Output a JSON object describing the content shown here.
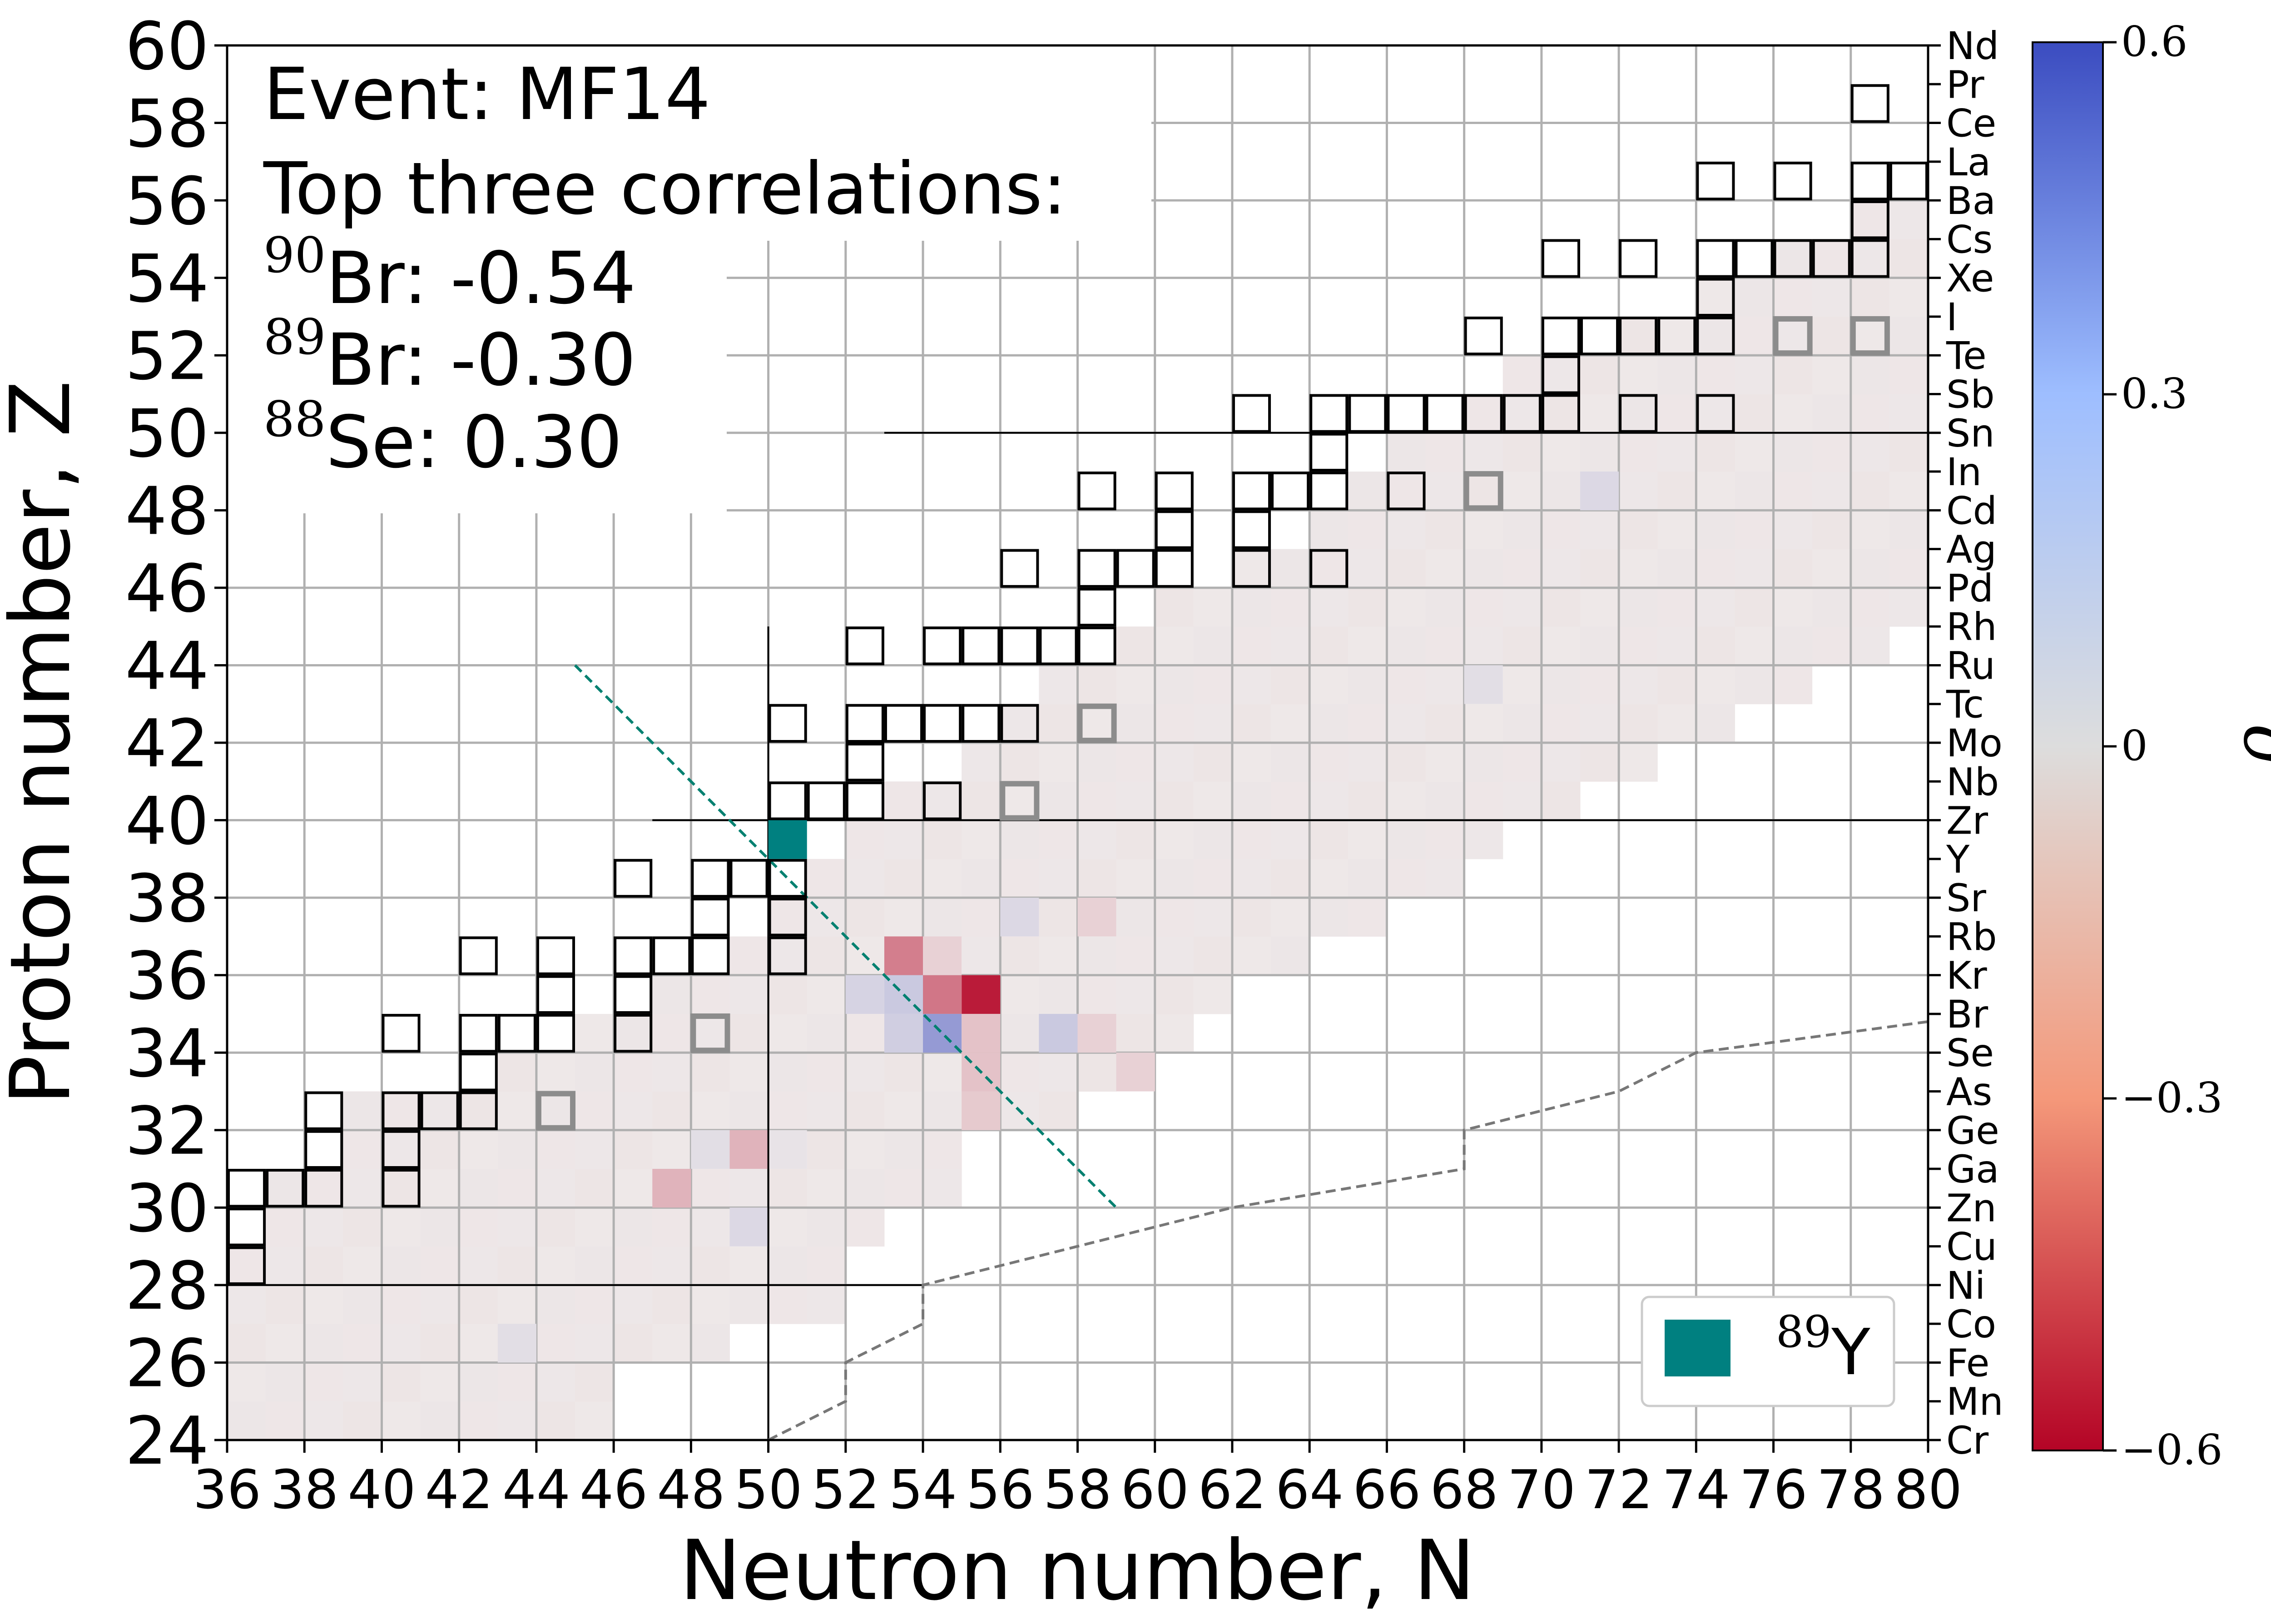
{
  "chart_data": {
    "type": "heatmap",
    "xlabel": "Neutron number, N",
    "ylabel": "Proton number, Z",
    "xlim": [
      36,
      80
    ],
    "ylim": [
      24,
      60
    ],
    "x_ticks": [
      "36",
      "38",
      "40",
      "42",
      "44",
      "46",
      "48",
      "50",
      "52",
      "54",
      "56",
      "58",
      "60",
      "62",
      "64",
      "66",
      "68",
      "70",
      "72",
      "74",
      "76",
      "78",
      "80"
    ],
    "y_ticks": [
      "24",
      "26",
      "28",
      "30",
      "32",
      "34",
      "36",
      "38",
      "40",
      "42",
      "44",
      "46",
      "48",
      "50",
      "52",
      "54",
      "56",
      "58",
      "60"
    ],
    "grid": true,
    "element_symbols": [
      {
        "z": 24,
        "symbol": "Cr"
      },
      {
        "z": 25,
        "symbol": "Mn"
      },
      {
        "z": 26,
        "symbol": "Fe"
      },
      {
        "z": 27,
        "symbol": "Co"
      },
      {
        "z": 28,
        "symbol": "Ni"
      },
      {
        "z": 29,
        "symbol": "Cu"
      },
      {
        "z": 30,
        "symbol": "Zn"
      },
      {
        "z": 31,
        "symbol": "Ga"
      },
      {
        "z": 32,
        "symbol": "Ge"
      },
      {
        "z": 33,
        "symbol": "As"
      },
      {
        "z": 34,
        "symbol": "Se"
      },
      {
        "z": 35,
        "symbol": "Br"
      },
      {
        "z": 36,
        "symbol": "Kr"
      },
      {
        "z": 37,
        "symbol": "Rb"
      },
      {
        "z": 38,
        "symbol": "Sr"
      },
      {
        "z": 39,
        "symbol": "Y"
      },
      {
        "z": 40,
        "symbol": "Zr"
      },
      {
        "z": 41,
        "symbol": "Nb"
      },
      {
        "z": 42,
        "symbol": "Mo"
      },
      {
        "z": 43,
        "symbol": "Tc"
      },
      {
        "z": 44,
        "symbol": "Ru"
      },
      {
        "z": 45,
        "symbol": "Rh"
      },
      {
        "z": 46,
        "symbol": "Pd"
      },
      {
        "z": 47,
        "symbol": "Ag"
      },
      {
        "z": 48,
        "symbol": "Cd"
      },
      {
        "z": 49,
        "symbol": "In"
      },
      {
        "z": 50,
        "symbol": "Sn"
      },
      {
        "z": 51,
        "symbol": "Sb"
      },
      {
        "z": 52,
        "symbol": "Te"
      },
      {
        "z": 53,
        "symbol": "I"
      },
      {
        "z": 54,
        "symbol": "Xe"
      },
      {
        "z": 55,
        "symbol": "Cs"
      },
      {
        "z": 56,
        "symbol": "Ba"
      },
      {
        "z": 57,
        "symbol": "La"
      },
      {
        "z": 58,
        "symbol": "Ce"
      },
      {
        "z": 59,
        "symbol": "Pr"
      },
      {
        "z": 60,
        "symbol": "Nd"
      }
    ],
    "colorbar": {
      "label": "ρ",
      "range": [
        -0.6,
        0.6
      ],
      "ticks": [
        {
          "value": 0.6,
          "label": "0.6"
        },
        {
          "value": 0.3,
          "label": "0.3"
        },
        {
          "value": 0,
          "label": "0"
        },
        {
          "value": -0.3,
          "label": "−0.3"
        },
        {
          "value": -0.6,
          "label": "−0.6"
        }
      ],
      "colors": [
        "#b40426",
        "#f4987a",
        "#dddddd",
        "#9ebeff",
        "#3b4cc0"
      ]
    },
    "annotation": {
      "event": "Event: MF14",
      "heading": "Top three correlations:",
      "items": [
        {
          "mass": "90",
          "element": "Br",
          "value": ": -0.54"
        },
        {
          "mass": "89",
          "element": "Br",
          "value": ": -0.30"
        },
        {
          "mass": "88",
          "element": "Se",
          "value": ": 0.30"
        }
      ]
    },
    "target": {
      "n": 50,
      "z": 39,
      "mass": "89",
      "element": "Y",
      "color": "#008080"
    },
    "highlighted_cells": [
      {
        "n": 55,
        "z": 35,
        "rho": -0.54
      },
      {
        "n": 54,
        "z": 35,
        "rho": -0.3
      },
      {
        "n": 54,
        "z": 34,
        "rho": 0.3
      },
      {
        "n": 53,
        "z": 36,
        "rho": -0.28
      },
      {
        "n": 53,
        "z": 35,
        "rho": 0.12
      },
      {
        "n": 54,
        "z": 36,
        "rho": -0.06
      },
      {
        "n": 57,
        "z": 34,
        "rho": 0.12
      },
      {
        "n": 55,
        "z": 34,
        "rho": -0.1
      },
      {
        "n": 55,
        "z": 33,
        "rho": -0.1
      },
      {
        "n": 55,
        "z": 32,
        "rho": -0.08
      },
      {
        "n": 53,
        "z": 34,
        "rho": 0.1
      },
      {
        "n": 52,
        "z": 35,
        "rho": 0.08
      },
      {
        "n": 49,
        "z": 31,
        "rho": -0.14
      },
      {
        "n": 47,
        "z": 30,
        "rho": -0.14
      },
      {
        "n": 48,
        "z": 31,
        "rho": 0.04
      },
      {
        "n": 49,
        "z": 29,
        "rho": 0.06
      },
      {
        "n": 58,
        "z": 37,
        "rho": -0.06
      },
      {
        "n": 56,
        "z": 37,
        "rho": 0.06
      },
      {
        "n": 71,
        "z": 48,
        "rho": 0.06
      },
      {
        "n": 68,
        "z": 43,
        "rho": 0.04
      },
      {
        "n": 58,
        "z": 34,
        "rho": -0.06
      },
      {
        "n": 59,
        "z": 33,
        "rho": -0.06
      },
      {
        "n": 43,
        "z": 26,
        "rho": 0.04
      },
      {
        "n": 50,
        "z": 31,
        "rho": 0.02
      }
    ],
    "stable_isotopes": [
      [
        36,
        28
      ],
      [
        36,
        29
      ],
      [
        36,
        30
      ],
      [
        37,
        30
      ],
      [
        38,
        30
      ],
      [
        38,
        31
      ],
      [
        38,
        32
      ],
      [
        40,
        30
      ],
      [
        40,
        31
      ],
      [
        40,
        32
      ],
      [
        41,
        32
      ],
      [
        42,
        32
      ],
      [
        42,
        33
      ],
      [
        42,
        34
      ],
      [
        43,
        34
      ],
      [
        44,
        34
      ],
      [
        44,
        35
      ],
      [
        44,
        36
      ],
      [
        40,
        34
      ],
      [
        42,
        36
      ],
      [
        46,
        34
      ],
      [
        46,
        35
      ],
      [
        46,
        36
      ],
      [
        47,
        36
      ],
      [
        48,
        36
      ],
      [
        48,
        37
      ],
      [
        48,
        38
      ],
      [
        49,
        38
      ],
      [
        50,
        38
      ],
      [
        50,
        37
      ],
      [
        50,
        36
      ],
      [
        46,
        38
      ],
      [
        50,
        40
      ],
      [
        51,
        40
      ],
      [
        52,
        40
      ],
      [
        52,
        41
      ],
      [
        52,
        42
      ],
      [
        53,
        42
      ],
      [
        54,
        42
      ],
      [
        55,
        42
      ],
      [
        56,
        42
      ],
      [
        50,
        42
      ],
      [
        54,
        40
      ],
      [
        52,
        44
      ],
      [
        54,
        44
      ],
      [
        55,
        44
      ],
      [
        56,
        44
      ],
      [
        57,
        44
      ],
      [
        58,
        44
      ],
      [
        58,
        45
      ],
      [
        58,
        46
      ],
      [
        59,
        46
      ],
      [
        60,
        46
      ],
      [
        60,
        47
      ],
      [
        60,
        48
      ],
      [
        56,
        46
      ],
      [
        58,
        48
      ],
      [
        62,
        46
      ],
      [
        62,
        47
      ],
      [
        62,
        48
      ],
      [
        63,
        48
      ],
      [
        64,
        48
      ],
      [
        64,
        49
      ],
      [
        64,
        50
      ],
      [
        65,
        50
      ],
      [
        66,
        50
      ],
      [
        67,
        50
      ],
      [
        68,
        50
      ],
      [
        69,
        50
      ],
      [
        70,
        50
      ],
      [
        70,
        51
      ],
      [
        70,
        52
      ],
      [
        71,
        52
      ],
      [
        72,
        52
      ],
      [
        73,
        52
      ],
      [
        74,
        52
      ],
      [
        74,
        53
      ],
      [
        74,
        54
      ],
      [
        75,
        54
      ],
      [
        76,
        54
      ],
      [
        77,
        54
      ],
      [
        78,
        54
      ],
      [
        78,
        55
      ],
      [
        78,
        56
      ],
      [
        79,
        56
      ],
      [
        80,
        56
      ],
      [
        62,
        50
      ],
      [
        64,
        46
      ],
      [
        66,
        48
      ],
      [
        68,
        52
      ],
      [
        72,
        50
      ],
      [
        74,
        50
      ],
      [
        70,
        54
      ],
      [
        72,
        54
      ],
      [
        74,
        56
      ],
      [
        76,
        56
      ],
      [
        78,
        58
      ],
      [
        80,
        58
      ],
      [
        80,
        54
      ]
    ],
    "other_isotopes": [
      [
        44,
        32
      ],
      [
        48,
        34
      ],
      [
        56,
        40
      ],
      [
        58,
        42
      ],
      [
        68,
        48
      ],
      [
        76,
        52
      ],
      [
        78,
        52
      ]
    ],
    "magic_lines": [
      {
        "type": "proton",
        "z": 28,
        "n_from": 36,
        "n_to": 54
      },
      {
        "type": "proton",
        "z": 40,
        "n_from": 47,
        "n_to": 80
      },
      {
        "type": "proton",
        "z": 50,
        "n_from": 53,
        "n_to": 80
      },
      {
        "type": "neutron",
        "n": 50,
        "z_from": 24,
        "z_to": 45
      }
    ],
    "dripline": [
      [
        50,
        24
      ],
      [
        52,
        25
      ],
      [
        52,
        26
      ],
      [
        54,
        27
      ],
      [
        54,
        28
      ],
      [
        62,
        30
      ],
      [
        68,
        31
      ],
      [
        68,
        32
      ],
      [
        72,
        33
      ],
      [
        74,
        34
      ],
      [
        80,
        34.8
      ]
    ],
    "diagonal_line": [
      [
        45,
        44
      ],
      [
        59,
        30
      ]
    ],
    "legend": {
      "position": "lower-right",
      "label_mass": "89",
      "label_element": "Y"
    }
  }
}
